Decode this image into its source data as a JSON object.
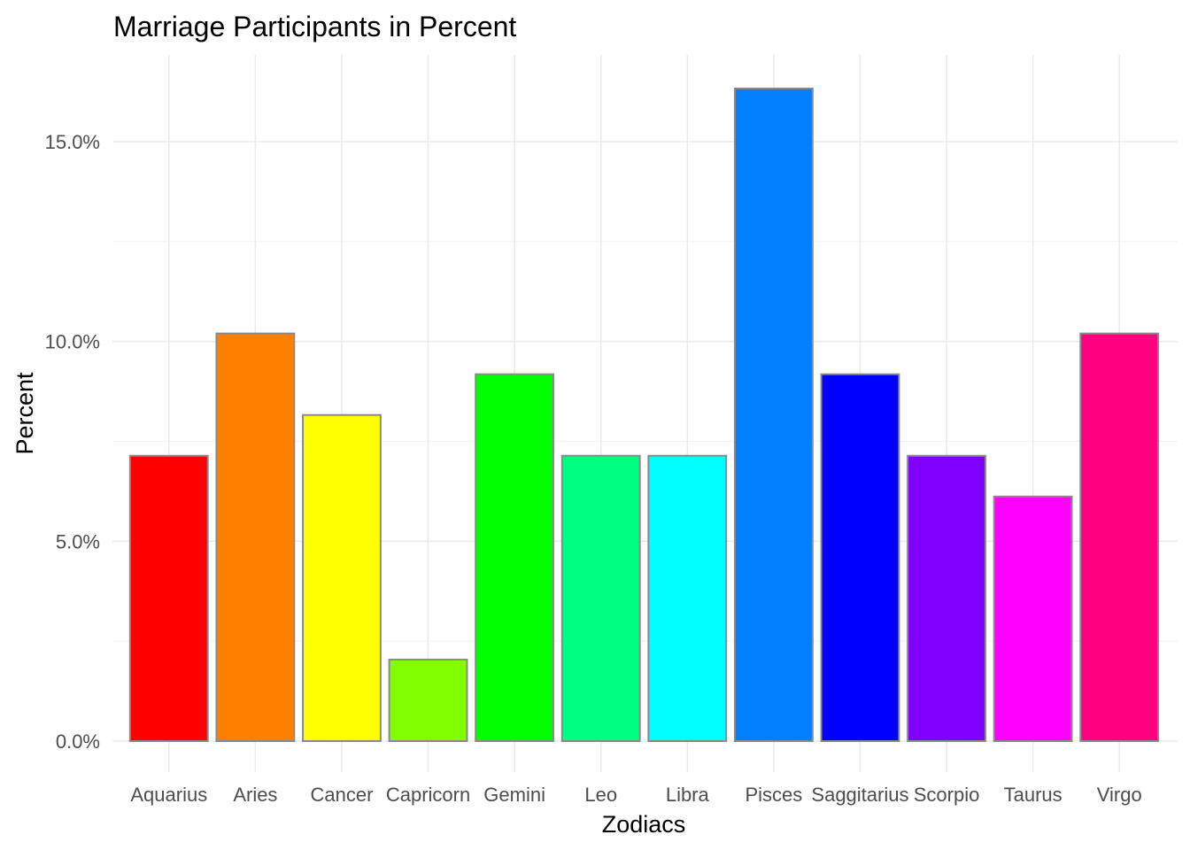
{
  "chart_data": {
    "type": "bar",
    "title": "Marriage Participants in Percent",
    "xlabel": "Zodiacs",
    "ylabel": "Percent",
    "categories": [
      "Aquarius",
      "Aries",
      "Cancer",
      "Capricorn",
      "Gemini",
      "Leo",
      "Libra",
      "Pisces",
      "Saggitarius",
      "Scorpio",
      "Taurus",
      "Virgo"
    ],
    "values": [
      7.14,
      10.2,
      8.16,
      2.04,
      9.18,
      7.14,
      7.14,
      16.33,
      9.18,
      7.14,
      6.12,
      10.2
    ],
    "colors": [
      "#FF0000",
      "#FF8000",
      "#FFFF00",
      "#80FF00",
      "#00FF00",
      "#00FF80",
      "#00FFFF",
      "#0080FF",
      "#0000FF",
      "#8000FF",
      "#FF00FF",
      "#FF0080"
    ],
    "bar_outline_color": "#8a8a8a",
    "y_ticks": [
      0,
      5,
      10,
      15
    ],
    "y_tick_labels": [
      "0.0%",
      "5.0%",
      "10.0%",
      "15.0%"
    ],
    "ylim": [
      0,
      16.33
    ],
    "grid": true,
    "legend": "none"
  }
}
